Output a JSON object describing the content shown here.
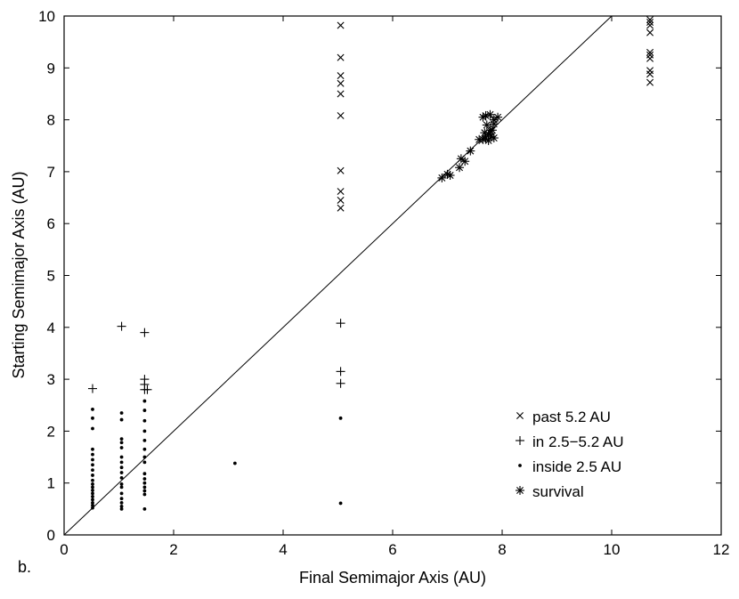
{
  "chart_data": {
    "type": "scatter",
    "panel_label": "b.",
    "xlabel": "Final Semimajor Axis (AU)",
    "ylabel": "Starting Semimajor Axis (AU)",
    "xlim": [
      0,
      12
    ],
    "ylim": [
      0,
      10
    ],
    "x_ticks": [
      "0",
      "2",
      "4",
      "6",
      "8",
      "10",
      "12"
    ],
    "y_ticks": [
      "0",
      "1",
      "2",
      "3",
      "4",
      "5",
      "6",
      "7",
      "8",
      "9",
      "10"
    ],
    "grid": false,
    "legend_position": "bottom-right",
    "reference_line": {
      "type": "y=x",
      "from": [
        0,
        0
      ],
      "to": [
        10,
        10
      ]
    },
    "series": [
      {
        "name": "past 5.2 AU",
        "marker": "x",
        "points": [
          [
            5.05,
            9.82
          ],
          [
            5.05,
            9.2
          ],
          [
            5.05,
            8.85
          ],
          [
            5.05,
            8.7
          ],
          [
            5.05,
            8.5
          ],
          [
            5.05,
            8.08
          ],
          [
            5.05,
            7.02
          ],
          [
            5.05,
            6.62
          ],
          [
            5.05,
            6.45
          ],
          [
            5.05,
            6.3
          ],
          [
            10.7,
            9.93
          ],
          [
            10.7,
            9.88
          ],
          [
            10.7,
            9.82
          ],
          [
            10.7,
            9.68
          ],
          [
            10.7,
            9.3
          ],
          [
            10.7,
            9.25
          ],
          [
            10.7,
            9.18
          ],
          [
            10.7,
            8.95
          ],
          [
            10.7,
            8.88
          ],
          [
            10.7,
            8.72
          ]
        ]
      },
      {
        "name": "in 2.5−5.2 AU",
        "marker": "+",
        "points": [
          [
            0.52,
            2.82
          ],
          [
            1.05,
            4.02
          ],
          [
            1.47,
            3.9
          ],
          [
            1.47,
            3.0
          ],
          [
            1.47,
            2.9
          ],
          [
            1.47,
            2.8
          ],
          [
            1.52,
            2.8
          ],
          [
            5.05,
            4.08
          ],
          [
            5.05,
            3.15
          ],
          [
            5.05,
            2.92
          ]
        ]
      },
      {
        "name": "inside 2.5 AU",
        "marker": "dot",
        "points": [
          [
            0.52,
            2.42
          ],
          [
            0.52,
            2.25
          ],
          [
            0.52,
            2.05
          ],
          [
            0.52,
            1.65
          ],
          [
            0.52,
            1.55
          ],
          [
            0.52,
            1.45
          ],
          [
            0.52,
            1.35
          ],
          [
            0.52,
            1.25
          ],
          [
            0.52,
            1.15
          ],
          [
            0.52,
            1.05
          ],
          [
            0.52,
            0.98
          ],
          [
            0.52,
            0.92
          ],
          [
            0.52,
            0.86
          ],
          [
            0.52,
            0.8
          ],
          [
            0.52,
            0.74
          ],
          [
            0.52,
            0.68
          ],
          [
            0.52,
            0.62
          ],
          [
            0.52,
            0.57
          ],
          [
            0.52,
            0.52
          ],
          [
            1.05,
            2.35
          ],
          [
            1.05,
            2.22
          ],
          [
            1.05,
            1.85
          ],
          [
            1.05,
            1.78
          ],
          [
            1.05,
            1.68
          ],
          [
            1.05,
            1.5
          ],
          [
            1.05,
            1.4
          ],
          [
            1.05,
            1.3
          ],
          [
            1.05,
            1.2
          ],
          [
            1.05,
            1.1
          ],
          [
            1.05,
            0.98
          ],
          [
            1.05,
            0.92
          ],
          [
            1.05,
            0.8
          ],
          [
            1.05,
            0.7
          ],
          [
            1.05,
            0.62
          ],
          [
            1.05,
            0.55
          ],
          [
            1.05,
            0.5
          ],
          [
            1.47,
            2.58
          ],
          [
            1.47,
            2.4
          ],
          [
            1.47,
            2.2
          ],
          [
            1.47,
            2.0
          ],
          [
            1.47,
            1.82
          ],
          [
            1.47,
            1.65
          ],
          [
            1.47,
            1.5
          ],
          [
            1.47,
            1.4
          ],
          [
            1.47,
            1.18
          ],
          [
            1.47,
            1.08
          ],
          [
            1.47,
            1.0
          ],
          [
            1.47,
            0.92
          ],
          [
            1.47,
            0.85
          ],
          [
            1.47,
            0.78
          ],
          [
            1.47,
            0.5
          ],
          [
            3.12,
            1.38
          ],
          [
            5.05,
            2.25
          ],
          [
            5.05,
            0.61
          ]
        ]
      },
      {
        "name": "survival",
        "marker": "asterisk",
        "points": [
          [
            6.9,
            6.88
          ],
          [
            7.0,
            6.95
          ],
          [
            7.05,
            6.93
          ],
          [
            7.22,
            7.08
          ],
          [
            7.25,
            7.25
          ],
          [
            7.32,
            7.2
          ],
          [
            7.42,
            7.4
          ],
          [
            7.58,
            7.62
          ],
          [
            7.65,
            7.62
          ],
          [
            7.68,
            7.75
          ],
          [
            7.7,
            7.65
          ],
          [
            7.72,
            7.9
          ],
          [
            7.75,
            7.72
          ],
          [
            7.78,
            7.8
          ],
          [
            7.8,
            7.68
          ],
          [
            7.82,
            7.8
          ],
          [
            7.85,
            7.65
          ],
          [
            7.85,
            7.92
          ],
          [
            7.7,
            8.08
          ],
          [
            7.78,
            8.1
          ],
          [
            7.85,
            8.0
          ],
          [
            7.92,
            8.05
          ],
          [
            7.65,
            8.05
          ],
          [
            7.75,
            7.6
          ]
        ]
      }
    ]
  }
}
